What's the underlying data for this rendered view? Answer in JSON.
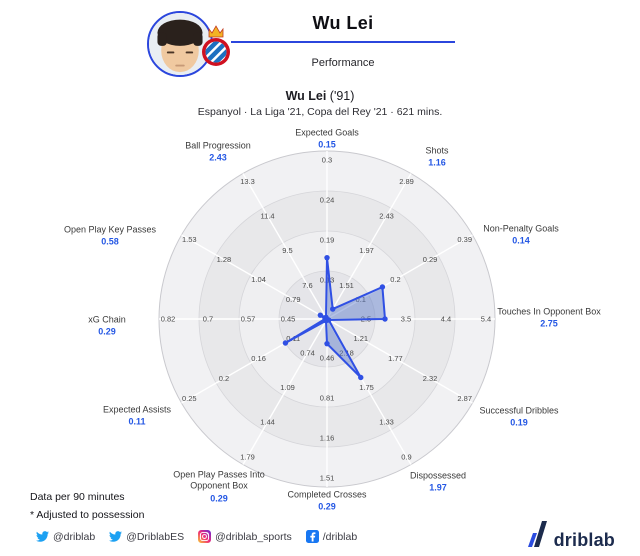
{
  "header": {
    "player_name": "Wu Lei",
    "section_label": "Performance"
  },
  "chart_header": {
    "title_name": "Wu Lei",
    "title_year": "('91)",
    "subtitle": "Espanyol · La Liga '21, Copa del Rey '21 · 621 mins."
  },
  "chart_data": {
    "type": "radar",
    "axes": [
      {
        "label": "Expected Goals",
        "value": "0.15",
        "value_num": 0.15,
        "ticks": [
          "0.13",
          "0.19",
          "0.24",
          "0.3"
        ]
      },
      {
        "label": "Shots",
        "value": "1.16",
        "value_num": 1.16,
        "ticks": [
          "1.51",
          "1.97",
          "2.43",
          "2.89"
        ]
      },
      {
        "label": "Non-Penalty Goals",
        "value": "0.14",
        "value_num": 0.14,
        "ticks": [
          "0.1",
          "0.2",
          "0.29",
          "0.39"
        ]
      },
      {
        "label": "Touches In Opponent Box",
        "value": "2.75",
        "value_num": 2.75,
        "ticks": [
          "2.5",
          "3.5",
          "4.4",
          "5.4"
        ]
      },
      {
        "label": "Successful Dribbles",
        "value": "0.19",
        "value_num": 0.19,
        "ticks": [
          "1.21",
          "1.77",
          "2.32",
          "2.87"
        ]
      },
      {
        "label": "Dispossessed",
        "value": "1.97",
        "value_num": 1.97,
        "ticks": [
          "2.18",
          "1.75",
          "1.33",
          "0.9"
        ],
        "inverted": true
      },
      {
        "label": "Completed Crosses",
        "value": "0.29",
        "value_num": 0.29,
        "ticks": [
          "0.46",
          "0.81",
          "1.16",
          "1.51"
        ]
      },
      {
        "label": "Open Play Passes Into Opponent Box",
        "value": "0.29",
        "value_num": 0.29,
        "ticks": [
          "0.74",
          "1.09",
          "1.44",
          "1.79"
        ]
      },
      {
        "label": "Expected Assists",
        "value": "0.11",
        "value_num": 0.11,
        "ticks": [
          "0.11",
          "0.16",
          "0.2",
          "0.25"
        ]
      },
      {
        "label": "xG Chain",
        "value": "0.29",
        "value_num": 0.29,
        "ticks": [
          "0.45",
          "0.57",
          "0.7",
          "0.82"
        ]
      },
      {
        "label": "Open Play Key Passes",
        "value": "0.58",
        "value_num": 0.58,
        "ticks": [
          "0.79",
          "1.04",
          "1.28",
          "1.53"
        ]
      },
      {
        "label": "Ball Progression",
        "value": "2.43",
        "value_num": 2.43,
        "ticks": [
          "7.6",
          "9.5",
          "11.4",
          "13.3"
        ]
      }
    ]
  },
  "footnotes": {
    "line1": "Data per 90 minutes",
    "line2": "* Adjusted to possession"
  },
  "social": [
    {
      "network": "twitter",
      "handle": "@driblab"
    },
    {
      "network": "twitter",
      "handle": "@DriblabES"
    },
    {
      "network": "instagram",
      "handle": "@driblab_sports"
    },
    {
      "network": "facebook",
      "handle": "/driblab"
    }
  ],
  "logo": {
    "text": "driblab"
  },
  "colors": {
    "accent": "#2b46dd",
    "value_text": "#2457e4",
    "polygon_stroke": "#3050e4",
    "polygon_fill": "rgba(88,120,200,0.45)",
    "tick_text": "#4a4a4a",
    "twitter": "#1da1f2",
    "facebook": "#1877f2"
  }
}
